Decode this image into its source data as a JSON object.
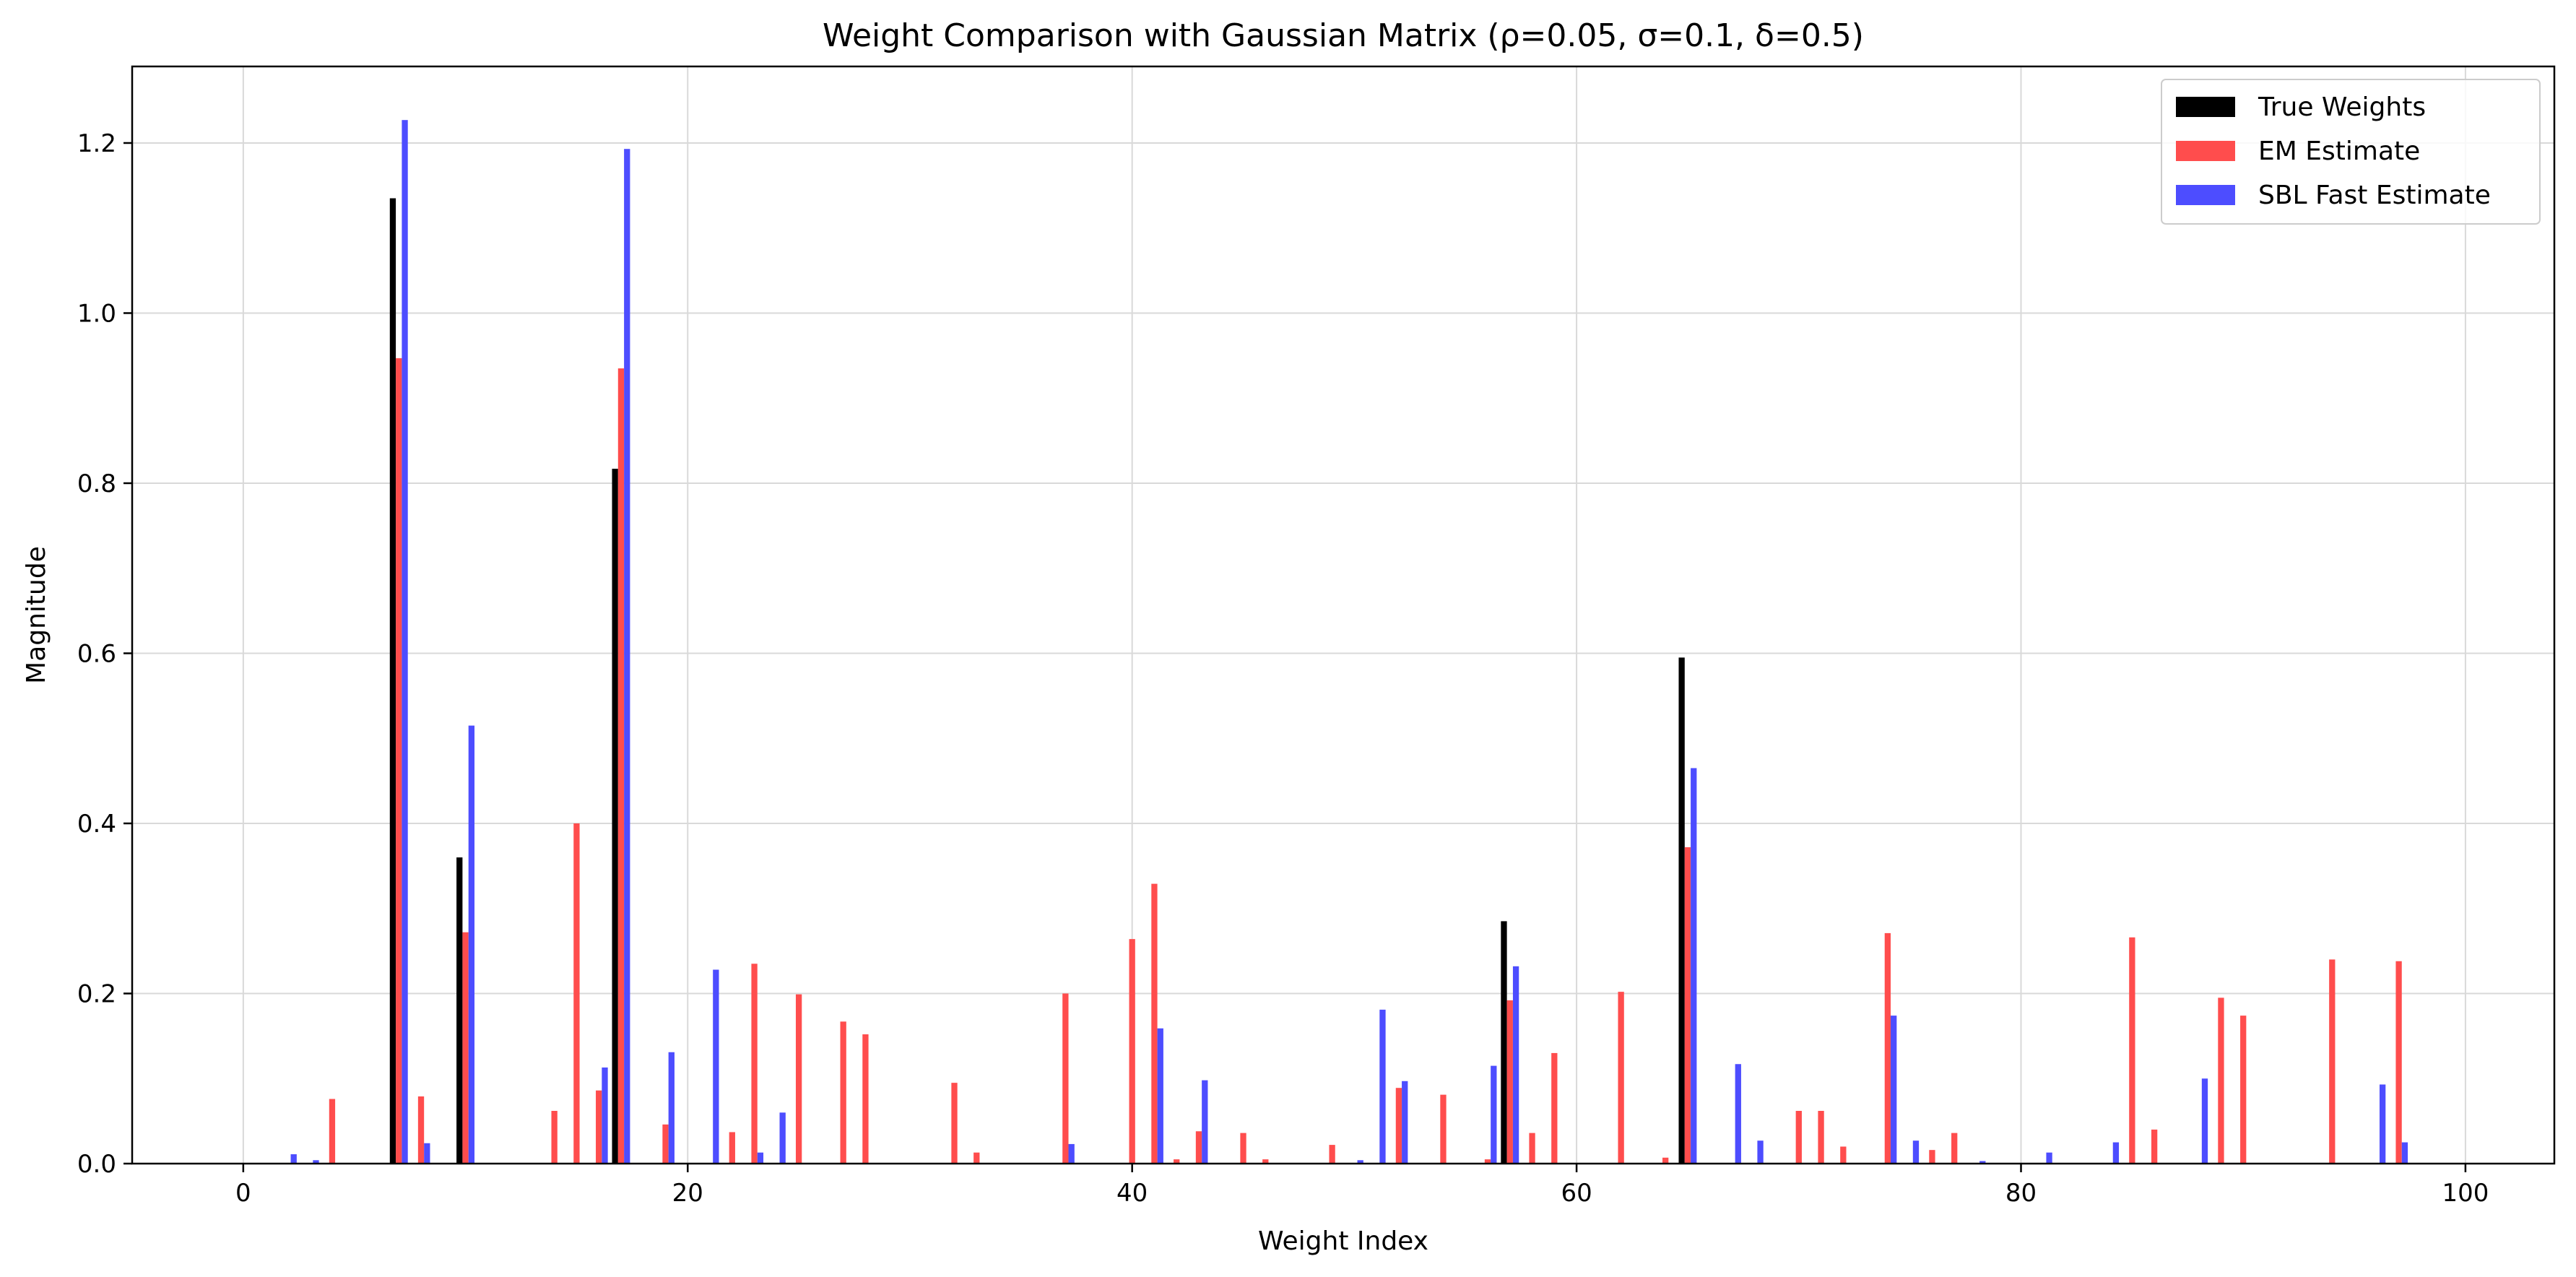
{
  "chart_data": {
    "type": "bar",
    "title": "Weight Comparison with Gaussian Matrix (ρ=0.05, σ=0.1, δ=0.5)",
    "xlabel": "Weight Index",
    "ylabel": "Magnitude",
    "xlim": [
      -5,
      104
    ],
    "ylim": [
      0,
      1.29
    ],
    "xticks": [
      0,
      20,
      40,
      60,
      80,
      100
    ],
    "yticks": [
      0.0,
      0.2,
      0.4,
      0.6,
      0.8,
      1.0,
      1.2
    ],
    "xtick_labels": [
      "0",
      "20",
      "40",
      "60",
      "80",
      "100"
    ],
    "ytick_labels": [
      "0.0",
      "0.2",
      "0.4",
      "0.6",
      "0.8",
      "1.0",
      "1.2"
    ],
    "grid": true,
    "legend_position": "top-right",
    "series": [
      {
        "name": "True Weights",
        "color": "#000000",
        "offset": -0.27,
        "points": [
          {
            "x": 7,
            "y": 1.135
          },
          {
            "x": 10,
            "y": 0.36
          },
          {
            "x": 17,
            "y": 0.817
          },
          {
            "x": 57,
            "y": 0.285
          },
          {
            "x": 65,
            "y": 0.595
          }
        ]
      },
      {
        "name": "EM Estimate",
        "color": "#ff4d4d",
        "offset": 0,
        "points": [
          {
            "x": 4,
            "y": 0.076
          },
          {
            "x": 7,
            "y": 0.947
          },
          {
            "x": 8,
            "y": 0.079
          },
          {
            "x": 10,
            "y": 0.272
          },
          {
            "x": 14,
            "y": 0.062
          },
          {
            "x": 15,
            "y": 0.4
          },
          {
            "x": 16,
            "y": 0.086
          },
          {
            "x": 17,
            "y": 0.935
          },
          {
            "x": 19,
            "y": 0.046
          },
          {
            "x": 22,
            "y": 0.037
          },
          {
            "x": 23,
            "y": 0.235
          },
          {
            "x": 25,
            "y": 0.199
          },
          {
            "x": 27,
            "y": 0.167
          },
          {
            "x": 28,
            "y": 0.152
          },
          {
            "x": 32,
            "y": 0.095
          },
          {
            "x": 33,
            "y": 0.013
          },
          {
            "x": 37,
            "y": 0.2
          },
          {
            "x": 40,
            "y": 0.264
          },
          {
            "x": 41,
            "y": 0.329
          },
          {
            "x": 42,
            "y": 0.005
          },
          {
            "x": 43,
            "y": 0.038
          },
          {
            "x": 45,
            "y": 0.036
          },
          {
            "x": 46,
            "y": 0.005
          },
          {
            "x": 49,
            "y": 0.022
          },
          {
            "x": 52,
            "y": 0.089
          },
          {
            "x": 54,
            "y": 0.081
          },
          {
            "x": 56,
            "y": 0.005
          },
          {
            "x": 57,
            "y": 0.192
          },
          {
            "x": 58,
            "y": 0.036
          },
          {
            "x": 59,
            "y": 0.13
          },
          {
            "x": 62,
            "y": 0.202
          },
          {
            "x": 64,
            "y": 0.007
          },
          {
            "x": 65,
            "y": 0.372
          },
          {
            "x": 70,
            "y": 0.062
          },
          {
            "x": 71,
            "y": 0.062
          },
          {
            "x": 72,
            "y": 0.02
          },
          {
            "x": 74,
            "y": 0.271
          },
          {
            "x": 76,
            "y": 0.016
          },
          {
            "x": 77,
            "y": 0.036
          },
          {
            "x": 85,
            "y": 0.266
          },
          {
            "x": 86,
            "y": 0.04
          },
          {
            "x": 89,
            "y": 0.195
          },
          {
            "x": 90,
            "y": 0.174
          },
          {
            "x": 94,
            "y": 0.24
          },
          {
            "x": 97,
            "y": 0.238
          }
        ]
      },
      {
        "name": "SBL Fast Estimate",
        "color": "#4d4dff",
        "offset": 0.27,
        "points": [
          {
            "x": 2,
            "y": 0.011
          },
          {
            "x": 3,
            "y": 0.004
          },
          {
            "x": 7,
            "y": 1.227
          },
          {
            "x": 8,
            "y": 0.024
          },
          {
            "x": 10,
            "y": 0.515
          },
          {
            "x": 16,
            "y": 0.113
          },
          {
            "x": 17,
            "y": 1.193
          },
          {
            "x": 19,
            "y": 0.131
          },
          {
            "x": 21,
            "y": 0.228
          },
          {
            "x": 23,
            "y": 0.013
          },
          {
            "x": 24,
            "y": 0.06
          },
          {
            "x": 37,
            "y": 0.023
          },
          {
            "x": 41,
            "y": 0.159
          },
          {
            "x": 43,
            "y": 0.098
          },
          {
            "x": 50,
            "y": 0.004
          },
          {
            "x": 51,
            "y": 0.181
          },
          {
            "x": 52,
            "y": 0.097
          },
          {
            "x": 56,
            "y": 0.115
          },
          {
            "x": 57,
            "y": 0.232
          },
          {
            "x": 65,
            "y": 0.465
          },
          {
            "x": 67,
            "y": 0.117
          },
          {
            "x": 68,
            "y": 0.027
          },
          {
            "x": 74,
            "y": 0.174
          },
          {
            "x": 75,
            "y": 0.027
          },
          {
            "x": 78,
            "y": 0.003
          },
          {
            "x": 81,
            "y": 0.013
          },
          {
            "x": 84,
            "y": 0.025
          },
          {
            "x": 88,
            "y": 0.1
          },
          {
            "x": 96,
            "y": 0.093
          },
          {
            "x": 97,
            "y": 0.025
          }
        ]
      }
    ]
  }
}
